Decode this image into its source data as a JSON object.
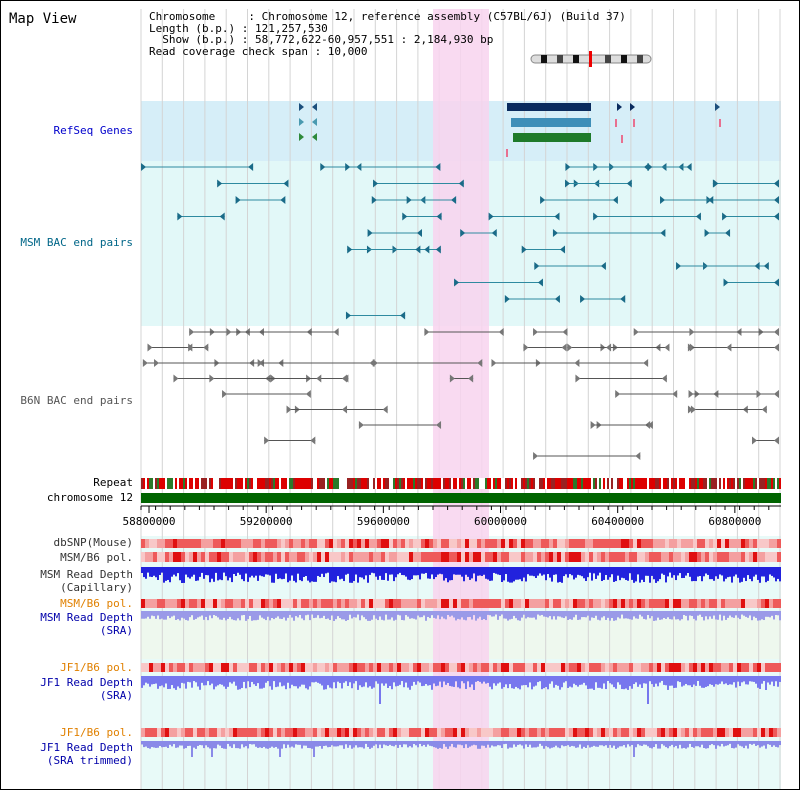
{
  "page_title": "Map View",
  "header": {
    "line1": "Chromosome     : Chromosome 12, reference assembly (C57BL/6J) (Build 37)",
    "line2": "Length (b.p.) : 121,257,530",
    "line3": "  Show (b.p.) : 58,772,622-60,957,551 : 2,184,930 bp",
    "line4": "Read coverage check span : 10,000"
  },
  "tracks": {
    "refseq": {
      "label": "RefSeq Genes",
      "color": "#0000cc"
    },
    "msm_bac": {
      "label": "MSM BAC end pairs",
      "color": "#006688"
    },
    "b6n_bac": {
      "label": "B6N BAC end pairs",
      "color": "#555555"
    },
    "repeat": {
      "label": "Repeat",
      "color": "#000000"
    },
    "chromosome": {
      "label": "chromosome 12",
      "color": "#000000"
    },
    "dbsnp": {
      "label": "dbSNP(Mouse)",
      "color": "#333333"
    },
    "msm_b6_pol": {
      "label": "MSM/B6 pol.",
      "color": "#333333"
    },
    "msm_depth_cap": {
      "label1": "MSM Read Depth",
      "label2": "(Capillary)",
      "color": "#333333"
    },
    "msm_b6_pol2": {
      "label": "MSM/B6 pol.",
      "color": "#e08000"
    },
    "msm_depth_sra": {
      "label1": "MSM Read Depth",
      "label2": "(SRA)",
      "color": "#0000aa"
    },
    "jf1_b6_pol": {
      "label": "JF1/B6 pol.",
      "color": "#e08000"
    },
    "jf1_depth_sra": {
      "label1": "JF1 Read Depth",
      "label2": "(SRA)",
      "color": "#0000aa"
    },
    "jf1_b6_pol2": {
      "label": "JF1/B6 pol.",
      "color": "#e08000"
    },
    "jf1_depth_trim": {
      "label1": "JF1 Read Depth",
      "label2": "(SRA trimmed)",
      "color": "#0000aa"
    }
  },
  "axis": {
    "ticks": [
      "58800000",
      "59200000",
      "59600000",
      "60000000",
      "60400000",
      "60800000"
    ],
    "tick_values": [
      58800000,
      59200000,
      59600000,
      60000000,
      60400000,
      60800000
    ],
    "range": [
      58772622,
      60957551
    ]
  },
  "colors": {
    "refseq_bg": "#d6eef8",
    "msm_bg": "#e2f8f8",
    "highlight": "#f8d4ee",
    "chrom_bar": "#006400",
    "repeat_red": "#dd0000",
    "depth_blue": "#2222dd",
    "depth_light": "#7777ee",
    "pol_red": "#ee4444"
  }
}
